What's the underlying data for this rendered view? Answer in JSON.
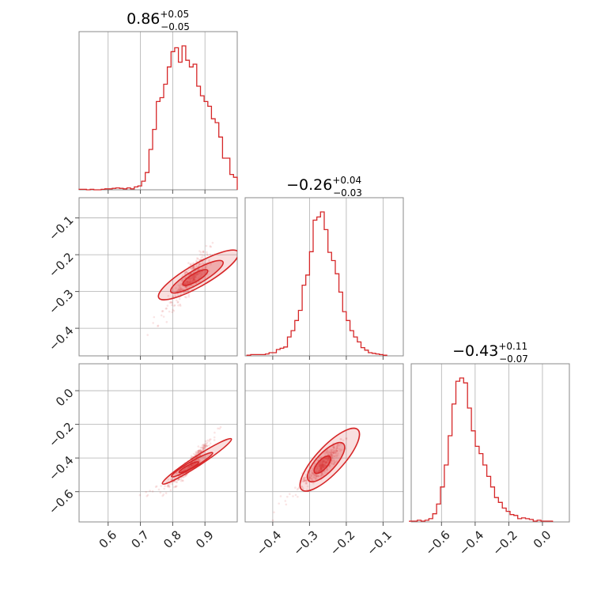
{
  "chart_data": {
    "type": "corner",
    "color": "#d62728",
    "parameters": [
      {
        "range": [
          0.51,
          1.0
        ],
        "ticks": [
          0.6,
          0.7,
          0.8,
          0.9
        ],
        "tick_labels": [
          "0.6",
          "0.7",
          "0.8",
          "0.9"
        ],
        "title": {
          "median": "0.86",
          "upper": "+0.05",
          "lower": "−0.05"
        },
        "histogram": [
          0.5,
          0.5,
          0,
          0.5,
          0,
          0,
          0.5,
          1,
          1,
          1.5,
          2,
          1.5,
          1,
          2,
          1,
          3,
          4,
          9,
          18,
          42,
          63,
          92,
          96,
          110,
          128,
          144,
          148,
          133,
          150,
          135,
          128,
          131,
          108,
          98,
          92,
          87,
          74,
          70,
          55,
          33,
          33,
          16,
          13
        ],
        "hist_range": [
          0.51,
          1.0
        ]
      },
      {
        "range": [
          -0.475,
          -0.045
        ],
        "ticks": [
          -0.4,
          -0.3,
          -0.2,
          -0.1
        ],
        "tick_labels": [
          "−0.4",
          "−0.3",
          "−0.2",
          "−0.1"
        ],
        "title": {
          "median": "−0.26",
          "upper": "+0.04",
          "lower": "−0.03"
        },
        "histogram": [
          1,
          2,
          2,
          2,
          2,
          3,
          5,
          5,
          10,
          12,
          14,
          30,
          40,
          56,
          72,
          112,
          128,
          165,
          215,
          220,
          228,
          200,
          164,
          151,
          130,
          101,
          70,
          56,
          40,
          30,
          22,
          13,
          9,
          5,
          4,
          3,
          2,
          1
        ],
        "hist_range": [
          -0.47,
          -0.09
        ]
      },
      {
        "range": [
          -0.78,
          0.16
        ],
        "ticks": [
          -0.6,
          -0.4,
          -0.2,
          0.0
        ],
        "tick_labels": [
          "−0.6",
          "−0.4",
          "−0.2",
          "0.0"
        ],
        "title": {
          "median": "−0.43",
          "upper": "+0.11",
          "lower": "−0.07"
        },
        "histogram": [
          1,
          1,
          2,
          1,
          2,
          4,
          10,
          22,
          43,
          70,
          106,
          145,
          173,
          177,
          171,
          140,
          112,
          93,
          84,
          70,
          56,
          43,
          30,
          24,
          17,
          13,
          9,
          8,
          4,
          5,
          4,
          3,
          1,
          2,
          1,
          1,
          1
        ],
        "hist_range": [
          -0.79,
          0.06
        ]
      }
    ],
    "contour_levels": [
      "inner",
      "middle",
      "outer"
    ]
  },
  "title_labels": {
    "p0": "0.86",
    "p1": "−0.26",
    "p2": "−0.43"
  }
}
